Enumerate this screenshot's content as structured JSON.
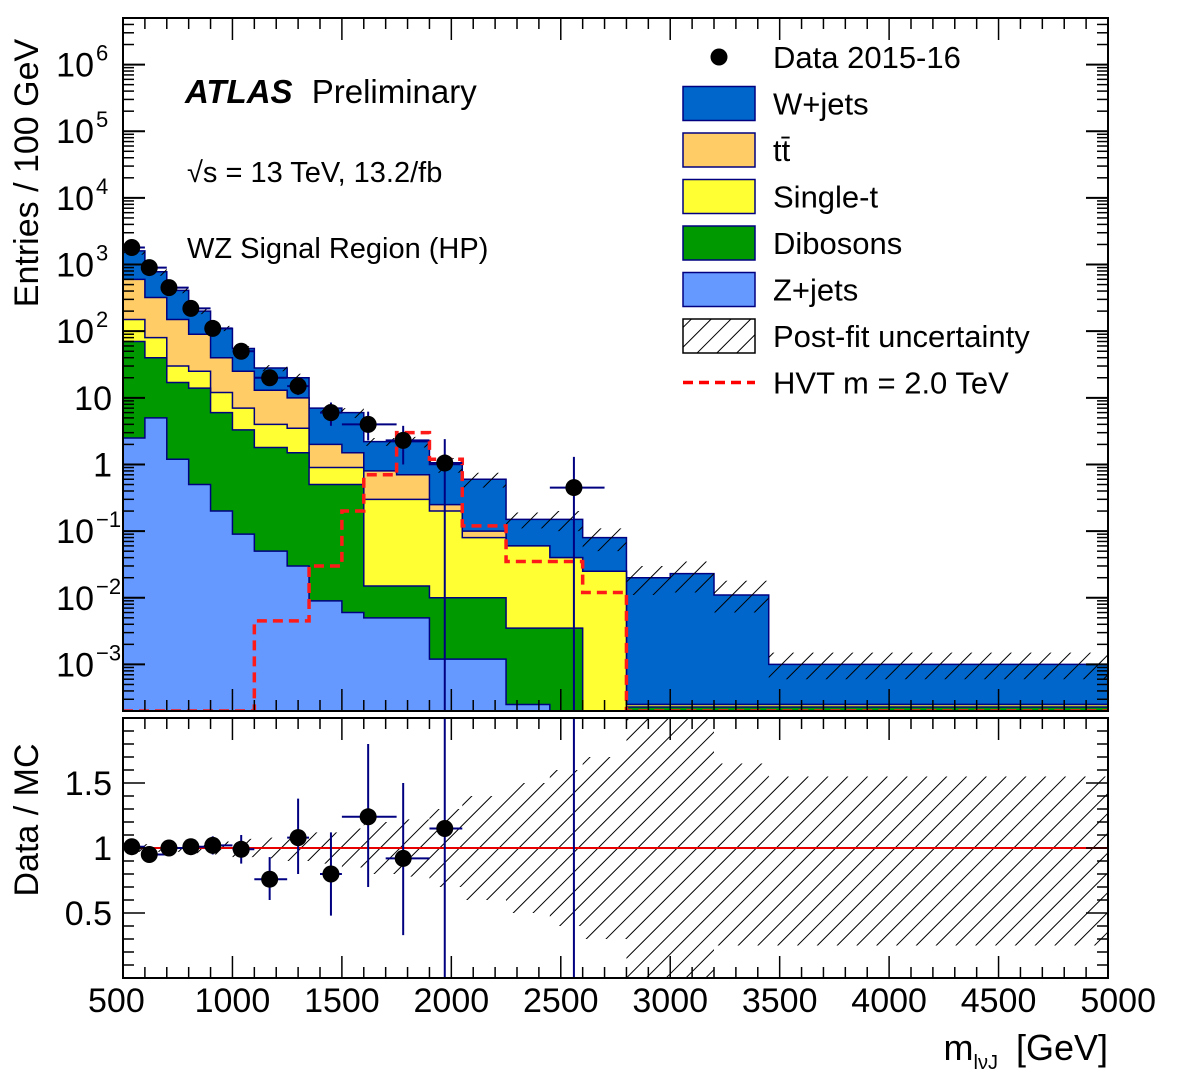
{
  "chart_data": {
    "type": "bar",
    "panels": [
      "main",
      "ratio"
    ],
    "x_edges": [
      500,
      600,
      700,
      800,
      900,
      1000,
      1100,
      1250,
      1350,
      1500,
      1600,
      1750,
      1900,
      2050,
      2250,
      2450,
      2600,
      2800,
      3000,
      3200,
      3450,
      3800,
      5000
    ],
    "xlim": [
      500,
      5000
    ],
    "xticks": [
      500,
      1000,
      1500,
      2000,
      2500,
      3000,
      3500,
      4000,
      4500,
      5000
    ],
    "xticklabels": [
      "500",
      "1000",
      "1500",
      "2000",
      "2500",
      "3000",
      "3500",
      "4000",
      "4500",
      "5000"
    ],
    "xlabel": "m",
    "xlabel_sub": "lνJ",
    "xlabel_unit": "[GeV]",
    "ylabel": "Entries / 100 GeV",
    "ylim": [
      0.0002,
      5000000
    ],
    "log_y": true,
    "y_ticks": [
      {
        "v": 0.001,
        "base": "10",
        "exp": "−3"
      },
      {
        "v": 0.01,
        "base": "10",
        "exp": "−2"
      },
      {
        "v": 0.1,
        "base": "10",
        "exp": "−1"
      },
      {
        "v": 1,
        "base": "1",
        "exp": ""
      },
      {
        "v": 10,
        "base": "10",
        "exp": ""
      },
      {
        "v": 100,
        "base": "10",
        "exp": "2"
      },
      {
        "v": 1000,
        "base": "10",
        "exp": "3"
      },
      {
        "v": 10000,
        "base": "10",
        "exp": "4"
      },
      {
        "v": 100000,
        "base": "10",
        "exp": "5"
      },
      {
        "v": 1000000,
        "base": "10",
        "exp": "6"
      }
    ],
    "stack_cumulative_tops": {
      "z_jets": [
        2.5,
        5.0,
        1.2,
        0.5,
        0.2,
        0.09,
        0.05,
        0.03,
        0.009,
        0.006,
        0.005,
        0.005,
        0.0012,
        0.0012,
        0.00025,
        0.0002,
        0.0002,
        0.0002,
        0.0002,
        0.0002,
        0.0002,
        0.0002
      ],
      "dibosons": [
        70,
        40,
        17,
        14,
        6,
        3.3,
        1.8,
        1.5,
        0.5,
        0.5,
        0.015,
        0.015,
        0.01,
        0.01,
        0.0035,
        0.0035,
        0.0002,
        0.00023,
        0.00023,
        0.00023,
        0.00023,
        0.00023
      ],
      "single_t": [
        150,
        80,
        30,
        25,
        12,
        7,
        4,
        3.5,
        0.9,
        0.9,
        0.3,
        0.3,
        0.2,
        0.08,
        0.06,
        0.04,
        0.025,
        0.00025,
        0.00025,
        0.00025,
        0.00025,
        0.00025
      ],
      "ttbar": [
        600,
        320,
        150,
        90,
        40,
        25,
        13,
        10,
        2.0,
        1.5,
        0.8,
        0.7,
        0.25,
        0.1,
        0.06,
        0.04,
        0.025,
        0.00025,
        0.00025,
        0.00025,
        0.00025,
        0.00025
      ],
      "w_jets": [
        1600,
        780,
        410,
        200,
        110,
        55,
        28,
        20,
        7,
        6,
        2.2,
        2.2,
        1.0,
        0.6,
        0.15,
        0.15,
        0.08,
        0.02,
        0.023,
        0.011,
        0.001,
        0.001
      ]
    },
    "post_fit_uncertainty_band": {
      "low": [
        1400,
        680,
        370,
        180,
        100,
        50,
        25,
        17,
        6,
        5,
        1.9,
        1.8,
        0.75,
        0.45,
        0.11,
        0.1,
        0.05,
        0.011,
        0.012,
        0.006,
        0.0006,
        0.0006
      ],
      "high": [
        1800,
        880,
        450,
        220,
        120,
        60,
        31,
        23,
        8,
        7,
        2.5,
        2.6,
        1.25,
        0.75,
        0.19,
        0.2,
        0.11,
        0.03,
        0.035,
        0.018,
        0.0015,
        0.0015
      ]
    },
    "signal_hvt_2000": [
      0.0002,
      0.0002,
      0.0002,
      0.0002,
      0.0002,
      0.0002,
      0.0045,
      0.0045,
      0.03,
      0.2,
      0.7,
      3.0,
      1.2,
      0.12,
      0.035,
      0.035,
      0.012,
      0.0002,
      0.0002,
      0.0002,
      0.0002,
      0.0002
    ],
    "data": [
      {
        "x": 540,
        "y": 1800,
        "ylo": 1720,
        "yhi": 1880,
        "xlo": 500,
        "xhi": 600
      },
      {
        "x": 620,
        "y": 900,
        "ylo": 860,
        "yhi": 940,
        "xlo": 600,
        "xhi": 700
      },
      {
        "x": 710,
        "y": 450,
        "ylo": 420,
        "yhi": 480,
        "xlo": 700,
        "xhi": 800
      },
      {
        "x": 810,
        "y": 220,
        "ylo": 200,
        "yhi": 240,
        "xlo": 800,
        "xhi": 900
      },
      {
        "x": 910,
        "y": 110,
        "ylo": 98,
        "yhi": 122,
        "xlo": 900,
        "xhi": 1000
      },
      {
        "x": 1040,
        "y": 50,
        "ylo": 43,
        "yhi": 57,
        "xlo": 1000,
        "xhi": 1100
      },
      {
        "x": 1170,
        "y": 20,
        "ylo": 16,
        "yhi": 25,
        "xlo": 1100,
        "xhi": 1250
      },
      {
        "x": 1300,
        "y": 15,
        "ylo": 11,
        "yhi": 19,
        "xlo": 1250,
        "xhi": 1350
      },
      {
        "x": 1450,
        "y": 6,
        "ylo": 3.8,
        "yhi": 8.5,
        "xlo": 1400,
        "xhi": 1500
      },
      {
        "x": 1620,
        "y": 4,
        "ylo": 2.3,
        "yhi": 6.2,
        "xlo": 1500,
        "xhi": 1750
      },
      {
        "x": 1780,
        "y": 2.3,
        "ylo": 1.0,
        "yhi": 3.8,
        "xlo": 1700,
        "xhi": 1900
      },
      {
        "x": 1970,
        "y": 1.05,
        "ylo": 0.0002,
        "yhi": 2.4,
        "xlo": 1900,
        "xhi": 2050
      },
      {
        "x": 2560,
        "y": 0.45,
        "ylo": 0.0002,
        "yhi": 1.3,
        "xlo": 2450,
        "xhi": 2700
      }
    ],
    "ratio": {
      "ylabel": "Data / MC",
      "ylim": [
        0,
        2.0
      ],
      "y_ticks": [
        0.5,
        1,
        1.5
      ],
      "y_ticklabels": [
        "0.5",
        "1",
        "1.5"
      ],
      "reference_line": 1,
      "points": [
        {
          "x": 540,
          "y": 1.01,
          "lo": 0.98,
          "hi": 1.04,
          "xlo": 500,
          "xhi": 600
        },
        {
          "x": 620,
          "y": 0.95,
          "lo": 0.92,
          "hi": 0.99,
          "xlo": 600,
          "xhi": 700
        },
        {
          "x": 710,
          "y": 1.0,
          "lo": 0.96,
          "hi": 1.04,
          "xlo": 700,
          "xhi": 800
        },
        {
          "x": 810,
          "y": 1.01,
          "lo": 0.96,
          "hi": 1.06,
          "xlo": 800,
          "xhi": 900
        },
        {
          "x": 910,
          "y": 1.02,
          "lo": 0.95,
          "hi": 1.09,
          "xlo": 900,
          "xhi": 1000
        },
        {
          "x": 1040,
          "y": 0.99,
          "lo": 0.88,
          "hi": 1.1,
          "xlo": 1000,
          "xhi": 1100
        },
        {
          "x": 1170,
          "y": 0.76,
          "lo": 0.6,
          "hi": 0.93,
          "xlo": 1100,
          "xhi": 1250
        },
        {
          "x": 1300,
          "y": 1.08,
          "lo": 0.8,
          "hi": 1.38,
          "xlo": 1250,
          "xhi": 1350
        },
        {
          "x": 1450,
          "y": 0.8,
          "lo": 0.48,
          "hi": 1.12,
          "xlo": 1400,
          "xhi": 1500
        },
        {
          "x": 1620,
          "y": 1.24,
          "lo": 0.7,
          "hi": 1.8,
          "xlo": 1500,
          "xhi": 1750
        },
        {
          "x": 1780,
          "y": 0.92,
          "lo": 0.33,
          "hi": 1.5,
          "xlo": 1700,
          "xhi": 1900
        },
        {
          "x": 1970,
          "y": 1.15,
          "lo": 0.0,
          "hi": 2.0,
          "xlo": 1900,
          "xhi": 2050
        },
        {
          "x": 2560,
          "y": null,
          "lo": 0.0,
          "hi": 2.0,
          "xlo": 2560,
          "xhi": 2560
        }
      ],
      "uncertainty_band": {
        "low": [
          0.97,
          0.97,
          0.97,
          0.96,
          0.95,
          0.93,
          0.92,
          0.9,
          0.88,
          0.85,
          0.8,
          0.78,
          0.7,
          0.6,
          0.5,
          0.4,
          0.3,
          0.0,
          0.0,
          0.25,
          0.25,
          0.25
        ],
        "high": [
          1.03,
          1.03,
          1.03,
          1.04,
          1.05,
          1.07,
          1.08,
          1.1,
          1.12,
          1.15,
          1.2,
          1.22,
          1.3,
          1.4,
          1.5,
          1.6,
          1.7,
          2.0,
          2.0,
          1.65,
          1.55,
          1.55
        ]
      }
    },
    "legend": {
      "placement": "top-right",
      "entries": [
        {
          "key": "data",
          "label": "Data 2015-16"
        },
        {
          "key": "w_jets",
          "label": "W+jets",
          "color": "#0066cc"
        },
        {
          "key": "ttbar",
          "label": "tt̄",
          "color": "#ffcc66"
        },
        {
          "key": "single_t",
          "label": "Single-t",
          "color": "#ffff33"
        },
        {
          "key": "dibosons",
          "label": "Dibosons",
          "color": "#009900"
        },
        {
          "key": "z_jets",
          "label": "Z+jets",
          "color": "#6699ff"
        },
        {
          "key": "uncertainty",
          "label": "Post-fit uncertainty"
        },
        {
          "key": "signal",
          "label": "HVT m = 2.0 TeV",
          "color": "#ff0000"
        }
      ]
    },
    "annotations": {
      "atlas": "ATLAS",
      "preliminary": "Preliminary",
      "energy": "√s = 13 TeV, 13.2/fb",
      "region": "WZ Signal Region (HP)"
    },
    "colors": {
      "w_jets": "#0066cc",
      "ttbar": "#ffcc66",
      "single_t": "#ffff33",
      "dibosons": "#009900",
      "z_jets": "#6699ff",
      "signal": "#ff1a1a",
      "data": "#000000",
      "errorbar": "#000080",
      "ratio_line": "#e60000",
      "hist_edge": "#000080"
    }
  }
}
